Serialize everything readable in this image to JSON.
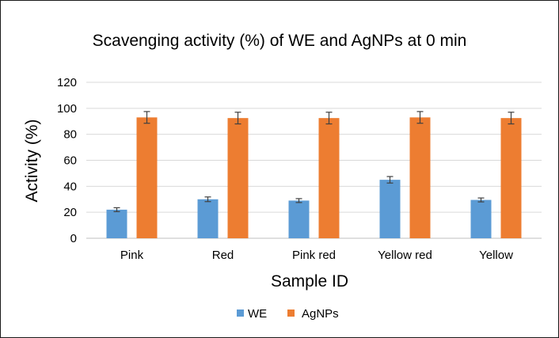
{
  "chart_data": {
    "type": "bar",
    "title": "Scavenging activity (%) of WE and AgNPs at 0 min",
    "xlabel": "Sample ID",
    "ylabel": "Activity (%)",
    "categories": [
      "Pink",
      "Red",
      "Pink red",
      "Yellow red",
      "Yellow"
    ],
    "series": [
      {
        "name": "WE",
        "color": "#5b9bd5",
        "values": [
          22,
          30,
          29,
          45,
          29.5
        ],
        "errors": [
          1.5,
          1.8,
          1.5,
          2.5,
          1.5
        ]
      },
      {
        "name": "AgNPs",
        "color": "#ed7d31",
        "values": [
          93,
          92.5,
          92.5,
          93,
          92.5
        ],
        "errors": [
          4.5,
          4.5,
          4.5,
          4.5,
          4.5
        ]
      }
    ],
    "ylim": [
      0,
      120
    ],
    "yticks": [
      0,
      20,
      40,
      60,
      80,
      100,
      120
    ],
    "grid": true,
    "gridline_color": "#d9d9d9",
    "legend_position": "bottom"
  }
}
